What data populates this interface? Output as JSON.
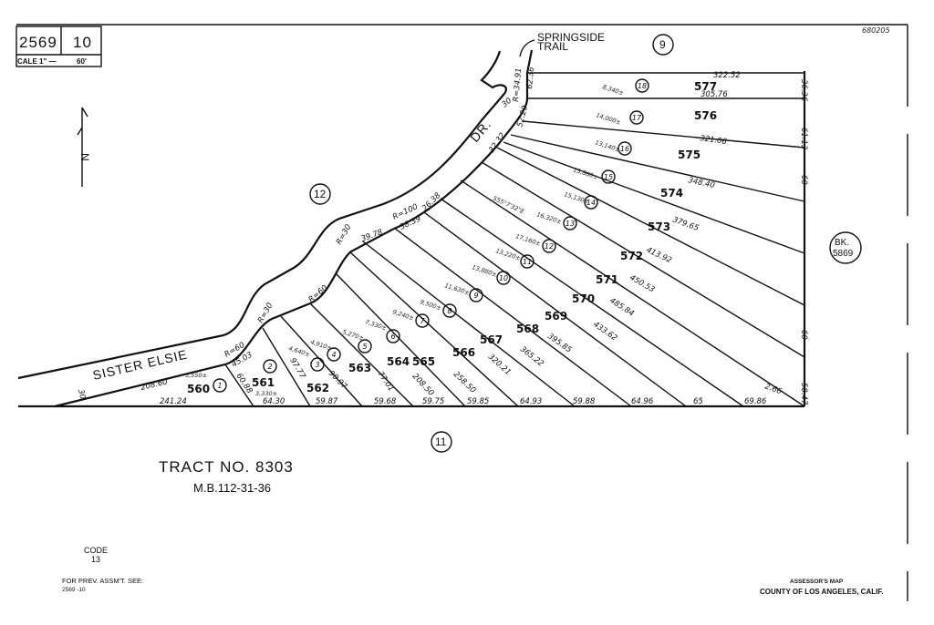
{
  "header": {
    "map_book": "2569",
    "page": "10",
    "scale_label": "CALE 1\" —",
    "scale_value": "60'",
    "document_number": "680205"
  },
  "labels": {
    "springside_1": "SPRINGSIDE",
    "springside_2": "TRAIL",
    "street_sister_elsie": "SISTER ELSIE",
    "street_dr": "DR.",
    "street_width": "30",
    "street_dr_width": "30",
    "north_arrow": "N",
    "bearing": "S55°7'32\"E"
  },
  "blocks": [
    "9",
    "12",
    "11"
  ],
  "adjacent_book": {
    "line1": "BK.",
    "line2": "5869"
  },
  "tract": {
    "title": "TRACT NO. 8303",
    "reference": "M.B.112-31-36"
  },
  "code": {
    "label": "CODE",
    "value": "13"
  },
  "previous_assessment": {
    "label": "FOR PREV. ASSM'T. SEE:",
    "value": "2569 -10"
  },
  "footer": {
    "line1": "ASSESSOR'S MAP",
    "line2": "COUNTY OF LOS ANGELES, CALIF."
  },
  "parcels": [
    {
      "parcel": "560",
      "lot": "1",
      "area": "5,550±"
    },
    {
      "parcel": "561",
      "lot": "2",
      "area": "3,330±"
    },
    {
      "parcel": "562",
      "lot": "3",
      "area": "4,640±"
    },
    {
      "parcel": "563",
      "lot": "4",
      "area": "4,910±"
    },
    {
      "parcel": "564",
      "lot": "5",
      "area": "5,270±"
    },
    {
      "parcel": "565",
      "lot": "6",
      "area": "7,330±"
    },
    {
      "parcel": "566",
      "lot": "7",
      "area": "9,240±"
    },
    {
      "parcel": "567",
      "lot": "8",
      "area": "9,500±"
    },
    {
      "parcel": "568",
      "lot": "9",
      "area": "11,630±"
    },
    {
      "parcel": "569",
      "lot": "10",
      "area": "13,880±"
    },
    {
      "parcel": "570",
      "lot": "11",
      "area": "13,220±"
    },
    {
      "parcel": "571",
      "lot": "12",
      "area": "17,160±"
    },
    {
      "parcel": "572",
      "lot": "13",
      "area": "16,320±"
    },
    {
      "parcel": "573",
      "lot": "14",
      "area": "15,130±"
    },
    {
      "parcel": "574",
      "lot": "15",
      "area": "13,860±"
    },
    {
      "parcel": "575",
      "lot": "16",
      "area": "13,140±"
    },
    {
      "parcel": "576",
      "lot": "17",
      "area": "14,000±"
    },
    {
      "parcel": "577",
      "lot": "18",
      "area": "8,340±"
    }
  ],
  "dimensions": {
    "frontage_south": [
      "241.24",
      "64.30",
      "59.87",
      "59.68",
      "59.75",
      "59.85",
      "64.93",
      "59.88",
      "64.96",
      "65",
      "69.86"
    ],
    "lot_lines": [
      "322.52",
      "305.76",
      "321.06",
      "348.40",
      "379.65",
      "413.92",
      "450.53",
      "485.84",
      "433.62",
      "395.85",
      "365.22",
      "320.21",
      "258.50",
      "208.50",
      "77.01",
      "90.97",
      "97.77",
      "60.88",
      "208.60"
    ],
    "east_line": [
      "36.36",
      "61.13",
      "60",
      "60",
      "58.47",
      "2.66"
    ],
    "curve": [
      "R=60",
      "45.03",
      "R=30",
      "R=60",
      "R=30",
      "39.78",
      "R=100",
      "38.39",
      "26.38",
      "32.32",
      "52.29",
      "R=34.91",
      "62.36"
    ]
  }
}
